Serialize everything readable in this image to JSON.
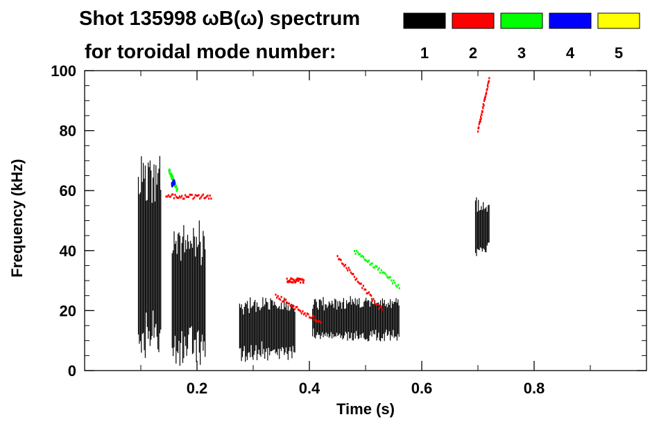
{
  "chart_data": {
    "type": "spectrogram",
    "title_line1": "Shot 135998 ωB(ω) spectrum",
    "title_line2": "for toroidal mode number:",
    "xlabel": "Time (s)",
    "ylabel": "Frequency (kHz)",
    "xlim": [
      0.0,
      1.0
    ],
    "ylim": [
      0,
      100
    ],
    "x_ticks": [
      {
        "value": 0.2,
        "label": "0.2"
      },
      {
        "value": 0.4,
        "label": "0.4"
      },
      {
        "value": 0.6,
        "label": "0.6"
      },
      {
        "value": 0.8,
        "label": "0.8"
      }
    ],
    "y_ticks": [
      {
        "value": 0,
        "label": "0"
      },
      {
        "value": 20,
        "label": "20"
      },
      {
        "value": 40,
        "label": "40"
      },
      {
        "value": 60,
        "label": "60"
      },
      {
        "value": 80,
        "label": "80"
      },
      {
        "value": 100,
        "label": "100"
      }
    ],
    "legend": [
      {
        "label": "1",
        "color": "#000000"
      },
      {
        "label": "2",
        "color": "#ff0000"
      },
      {
        "label": "3",
        "color": "#00ff00"
      },
      {
        "label": "4",
        "color": "#0000ff"
      },
      {
        "label": "5",
        "color": "#ffff00"
      }
    ],
    "modes": [
      {
        "mode": 1,
        "color": "#000000",
        "regions": [
          {
            "t": [
              0.095,
              0.135
            ],
            "f": [
              5,
              72
            ]
          },
          {
            "t": [
              0.155,
              0.215
            ],
            "f": [
              3,
              48
            ]
          },
          {
            "t": [
              0.275,
              0.375
            ],
            "f": [
              4,
              24
            ]
          },
          {
            "t": [
              0.405,
              0.56
            ],
            "f": [
              10,
              24
            ]
          },
          {
            "t": [
              0.695,
              0.72
            ],
            "f": [
              38,
              58
            ]
          }
        ]
      },
      {
        "mode": 2,
        "color": "#ff0000",
        "tracks": [
          {
            "t": [
              0.145,
              0.225
            ],
            "f": [
              58,
              58
            ]
          },
          {
            "t": [
              0.34,
              0.42
            ],
            "f": [
              25,
              16
            ]
          },
          {
            "t": [
              0.36,
              0.39
            ],
            "f": [
              30,
              30
            ]
          },
          {
            "t": [
              0.45,
              0.53
            ],
            "f": [
              38,
              20
            ]
          },
          {
            "t": [
              0.7,
              0.72
            ],
            "f": [
              80,
              97
            ]
          }
        ]
      },
      {
        "mode": 3,
        "color": "#00ff00",
        "tracks": [
          {
            "t": [
              0.15,
              0.165
            ],
            "f": [
              67,
              60
            ]
          },
          {
            "t": [
              0.48,
              0.56
            ],
            "f": [
              40,
              28
            ]
          }
        ]
      },
      {
        "mode": 4,
        "color": "#0000ff",
        "tracks": [
          {
            "t": [
              0.155,
              0.16
            ],
            "f": [
              62,
              63
            ]
          }
        ]
      }
    ]
  }
}
